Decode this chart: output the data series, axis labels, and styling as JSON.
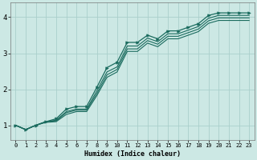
{
  "bg_color": "#cce8e4",
  "grid_color": "#aacfcb",
  "line_color": "#1a6b5e",
  "marker_color": "#1a6b5e",
  "xlabel": "Humidex (Indice chaleur)",
  "xlim": [
    -0.5,
    23.5
  ],
  "ylim": [
    0.6,
    4.4
  ],
  "yticks": [
    1,
    2,
    3,
    4
  ],
  "xticks": [
    0,
    1,
    2,
    3,
    4,
    5,
    6,
    7,
    8,
    9,
    10,
    11,
    12,
    13,
    14,
    15,
    16,
    17,
    18,
    19,
    20,
    21,
    22,
    23
  ],
  "lines": [
    {
      "x": [
        0,
        1,
        2,
        3,
        4,
        5,
        6,
        7,
        8,
        9,
        10,
        11,
        12,
        13,
        14,
        15,
        16,
        17,
        18,
        19,
        20,
        21,
        22,
        23
      ],
      "y": [
        1.0,
        0.88,
        1.0,
        1.1,
        1.18,
        1.45,
        1.52,
        1.52,
        2.05,
        2.6,
        2.75,
        3.3,
        3.3,
        3.5,
        3.4,
        3.62,
        3.62,
        3.72,
        3.82,
        4.05,
        4.12,
        4.12,
        4.12,
        4.12
      ],
      "marker": true
    },
    {
      "x": [
        0,
        1,
        2,
        3,
        4,
        5,
        6,
        7,
        8,
        9,
        10,
        11,
        12,
        13,
        14,
        15,
        16,
        17,
        18,
        19,
        20,
        21,
        22,
        23
      ],
      "y": [
        1.0,
        0.88,
        1.0,
        1.1,
        1.14,
        1.38,
        1.45,
        1.45,
        1.95,
        2.48,
        2.62,
        3.2,
        3.2,
        3.42,
        3.32,
        3.54,
        3.54,
        3.64,
        3.74,
        3.97,
        4.05,
        4.05,
        4.05,
        4.05
      ],
      "marker": false
    },
    {
      "x": [
        0,
        1,
        2,
        3,
        4,
        5,
        6,
        7,
        8,
        9,
        10,
        11,
        12,
        13,
        14,
        15,
        16,
        17,
        18,
        19,
        20,
        21,
        22,
        23
      ],
      "y": [
        1.0,
        0.88,
        1.0,
        1.1,
        1.12,
        1.35,
        1.42,
        1.42,
        1.88,
        2.4,
        2.55,
        3.12,
        3.12,
        3.35,
        3.25,
        3.47,
        3.47,
        3.57,
        3.67,
        3.9,
        3.98,
        3.98,
        3.98,
        3.98
      ],
      "marker": false
    },
    {
      "x": [
        0,
        1,
        2,
        3,
        4,
        5,
        6,
        7,
        8,
        9,
        10,
        11,
        12,
        13,
        14,
        15,
        16,
        17,
        18,
        19,
        20,
        21,
        22,
        23
      ],
      "y": [
        1.0,
        0.88,
        1.0,
        1.08,
        1.1,
        1.3,
        1.38,
        1.38,
        1.82,
        2.33,
        2.48,
        3.05,
        3.05,
        3.28,
        3.18,
        3.4,
        3.4,
        3.5,
        3.6,
        3.83,
        3.91,
        3.91,
        3.91,
        3.91
      ],
      "marker": false
    }
  ]
}
